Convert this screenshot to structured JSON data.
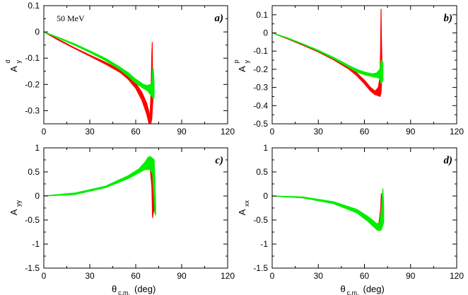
{
  "chart_data": [
    {
      "id": "a",
      "type": "line",
      "panel_label": "a)",
      "annotation": "50 MeV",
      "ylabel_main": "A",
      "ylabel_sub": "y",
      "ylabel_sup": "d",
      "xlabel_main": "",
      "xlabel_sub": "",
      "xlabel_rest": "",
      "xlim": [
        0,
        120
      ],
      "ylim": [
        -0.35,
        0.1
      ],
      "xticks": [
        0,
        30,
        60,
        90,
        120
      ],
      "yticks": [
        -0.3,
        -0.2,
        -0.1,
        0,
        0.1
      ],
      "ytick_labels": [
        "-0.3",
        "-0.2",
        "-0.1",
        "0",
        "0.1"
      ],
      "series": [
        {
          "name": "red band",
          "color": "#ff0000",
          "upper": [
            [
              0,
              0
            ],
            [
              10,
              -0.03
            ],
            [
              20,
              -0.06
            ],
            [
              30,
              -0.088
            ],
            [
              40,
              -0.115
            ],
            [
              50,
              -0.145
            ],
            [
              55,
              -0.165
            ],
            [
              60,
              -0.195
            ],
            [
              64,
              -0.23
            ],
            [
              67,
              -0.27
            ],
            [
              68.5,
              -0.3
            ],
            [
              69,
              -0.33
            ],
            [
              69.5,
              -0.3
            ],
            [
              70,
              -0.22
            ],
            [
              70.5,
              -0.08
            ],
            [
              70.8,
              -0.04
            ],
            [
              71,
              -0.2
            ],
            [
              71.5,
              -0.22
            ]
          ],
          "lower": [
            [
              71.5,
              -0.24
            ],
            [
              71,
              -0.28
            ],
            [
              70.8,
              -0.3
            ],
            [
              70.5,
              -0.33
            ],
            [
              70,
              -0.345
            ],
            [
              69.5,
              -0.35
            ],
            [
              69,
              -0.36
            ],
            [
              68.5,
              -0.345
            ],
            [
              67,
              -0.31
            ],
            [
              64,
              -0.26
            ],
            [
              60,
              -0.215
            ],
            [
              55,
              -0.18
            ],
            [
              50,
              -0.155
            ],
            [
              40,
              -0.122
            ],
            [
              30,
              -0.092
            ],
            [
              20,
              -0.063
            ],
            [
              10,
              -0.033
            ],
            [
              0,
              0
            ]
          ]
        },
        {
          "name": "green band",
          "color": "#00ee00",
          "upper": [
            [
              0,
              0
            ],
            [
              10,
              -0.022
            ],
            [
              20,
              -0.045
            ],
            [
              30,
              -0.072
            ],
            [
              40,
              -0.1
            ],
            [
              50,
              -0.135
            ],
            [
              55,
              -0.155
            ],
            [
              60,
              -0.18
            ],
            [
              65,
              -0.2
            ],
            [
              68,
              -0.205
            ],
            [
              69,
              -0.2
            ],
            [
              70,
              -0.2
            ],
            [
              70.5,
              -0.19
            ],
            [
              71,
              -0.14
            ],
            [
              71.5,
              -0.14
            ],
            [
              72,
              -0.2
            ]
          ],
          "lower": [
            [
              72,
              -0.25
            ],
            [
              71.5,
              -0.255
            ],
            [
              71,
              -0.25
            ],
            [
              70.5,
              -0.245
            ],
            [
              70,
              -0.24
            ],
            [
              69,
              -0.235
            ],
            [
              68,
              -0.225
            ],
            [
              65,
              -0.215
            ],
            [
              60,
              -0.195
            ],
            [
              55,
              -0.168
            ],
            [
              50,
              -0.145
            ],
            [
              40,
              -0.108
            ],
            [
              30,
              -0.078
            ],
            [
              20,
              -0.05
            ],
            [
              10,
              -0.025
            ],
            [
              0,
              0
            ]
          ]
        }
      ]
    },
    {
      "id": "b",
      "type": "line",
      "panel_label": "b)",
      "annotation": "",
      "ylabel_main": "A",
      "ylabel_sub": "y",
      "ylabel_sup": "p",
      "xlabel_main": "",
      "xlabel_sub": "",
      "xlabel_rest": "",
      "xlim": [
        0,
        120
      ],
      "ylim": [
        -0.5,
        0.15
      ],
      "xticks": [
        0,
        30,
        60,
        90,
        120
      ],
      "yticks": [
        -0.5,
        -0.4,
        -0.3,
        -0.2,
        -0.1,
        0,
        0.1
      ],
      "ytick_labels": [
        "-0.5",
        "-0.4",
        "-0.3",
        "-0.2",
        "-0.1",
        "0",
        "0.1"
      ],
      "series": [
        {
          "name": "red band",
          "color": "#ff0000",
          "upper": [
            [
              0,
              0
            ],
            [
              10,
              -0.03
            ],
            [
              20,
              -0.065
            ],
            [
              30,
              -0.1
            ],
            [
              40,
              -0.14
            ],
            [
              50,
              -0.19
            ],
            [
              55,
              -0.22
            ],
            [
              60,
              -0.26
            ],
            [
              64,
              -0.3
            ],
            [
              67,
              -0.32
            ],
            [
              69,
              -0.3
            ],
            [
              70,
              -0.25
            ],
            [
              70.5,
              -0.1
            ],
            [
              70.8,
              0.13
            ],
            [
              71,
              0.0
            ],
            [
              71.5,
              -0.2
            ]
          ],
          "lower": [
            [
              71.5,
              -0.25
            ],
            [
              71,
              -0.3
            ],
            [
              70.8,
              -0.33
            ],
            [
              70.5,
              -0.34
            ],
            [
              70,
              -0.35
            ],
            [
              69,
              -0.345
            ],
            [
              67,
              -0.34
            ],
            [
              64,
              -0.32
            ],
            [
              60,
              -0.28
            ],
            [
              55,
              -0.235
            ],
            [
              50,
              -0.2
            ],
            [
              40,
              -0.148
            ],
            [
              30,
              -0.105
            ],
            [
              20,
              -0.068
            ],
            [
              10,
              -0.033
            ],
            [
              0,
              0
            ]
          ]
        },
        {
          "name": "green band",
          "color": "#00ee00",
          "upper": [
            [
              0,
              0
            ],
            [
              10,
              -0.027
            ],
            [
              20,
              -0.06
            ],
            [
              30,
              -0.095
            ],
            [
              40,
              -0.135
            ],
            [
              50,
              -0.18
            ],
            [
              55,
              -0.2
            ],
            [
              60,
              -0.215
            ],
            [
              65,
              -0.225
            ],
            [
              68,
              -0.22
            ],
            [
              70,
              -0.2
            ],
            [
              71,
              -0.15
            ],
            [
              72,
              -0.16
            ]
          ],
          "lower": [
            [
              72,
              -0.26
            ],
            [
              71,
              -0.28
            ],
            [
              70,
              -0.25
            ],
            [
              68,
              -0.245
            ],
            [
              65,
              -0.24
            ],
            [
              60,
              -0.23
            ],
            [
              55,
              -0.215
            ],
            [
              50,
              -0.19
            ],
            [
              40,
              -0.142
            ],
            [
              30,
              -0.1
            ],
            [
              20,
              -0.063
            ],
            [
              10,
              -0.03
            ],
            [
              0,
              0
            ]
          ]
        }
      ]
    },
    {
      "id": "c",
      "type": "line",
      "panel_label": "c)",
      "annotation": "",
      "ylabel_main": "A",
      "ylabel_sub": "yy",
      "ylabel_sup": "",
      "xlabel_main": "θ",
      "xlabel_sub": "c.m.",
      "xlabel_rest": " (deg)",
      "xlim": [
        0,
        120
      ],
      "ylim": [
        -1.5,
        1
      ],
      "xticks": [
        0,
        30,
        60,
        90,
        120
      ],
      "yticks": [
        -1.5,
        -1,
        -0.5,
        0,
        0.5,
        1
      ],
      "ytick_labels": [
        "-1.5",
        "-1",
        "-0.5",
        "0",
        "0.5",
        "1"
      ],
      "series": [
        {
          "name": "red band",
          "color": "#ff0000",
          "upper": [
            [
              0,
              0
            ],
            [
              20,
              0.05
            ],
            [
              40,
              0.2
            ],
            [
              55,
              0.4
            ],
            [
              62,
              0.55
            ],
            [
              66,
              0.68
            ],
            [
              68,
              0.75
            ],
            [
              69.5,
              0.77
            ],
            [
              70.5,
              0.6
            ],
            [
              71,
              0.2
            ],
            [
              71.5,
              0.0
            ],
            [
              72,
              -0.2
            ]
          ],
          "lower": [
            [
              72,
              -0.3
            ],
            [
              71.5,
              -0.35
            ],
            [
              71,
              -0.45
            ],
            [
              70.5,
              0.2
            ],
            [
              69.5,
              0.55
            ],
            [
              68,
              0.6
            ],
            [
              66,
              0.58
            ],
            [
              62,
              0.5
            ],
            [
              55,
              0.37
            ],
            [
              40,
              0.18
            ],
            [
              20,
              0.04
            ],
            [
              0,
              0
            ]
          ]
        },
        {
          "name": "green band",
          "color": "#00ee00",
          "upper": [
            [
              0,
              0
            ],
            [
              20,
              0.06
            ],
            [
              40,
              0.2
            ],
            [
              55,
              0.42
            ],
            [
              62,
              0.56
            ],
            [
              66,
              0.7
            ],
            [
              68,
              0.8
            ],
            [
              69.5,
              0.82
            ],
            [
              71,
              0.78
            ],
            [
              72,
              0.75
            ],
            [
              72.5,
              0.3
            ],
            [
              73,
              -0.2
            ]
          ],
          "lower": [
            [
              73,
              -0.4
            ],
            [
              72.5,
              -0.35
            ],
            [
              72,
              0.0
            ],
            [
              71,
              0.45
            ],
            [
              69.5,
              0.55
            ],
            [
              68,
              0.55
            ],
            [
              66,
              0.55
            ],
            [
              62,
              0.48
            ],
            [
              55,
              0.36
            ],
            [
              40,
              0.17
            ],
            [
              20,
              0.03
            ],
            [
              0,
              0
            ]
          ]
        }
      ]
    },
    {
      "id": "d",
      "type": "line",
      "panel_label": "d)",
      "annotation": "",
      "ylabel_main": "A",
      "ylabel_sub": "xx",
      "ylabel_sup": "",
      "xlabel_main": "θ",
      "xlabel_sub": "c.m.",
      "xlabel_rest": " (deg)",
      "xlim": [
        0,
        120
      ],
      "ylim": [
        -1.5,
        1
      ],
      "xticks": [
        0,
        30,
        60,
        90,
        120
      ],
      "yticks": [
        -1.5,
        -1,
        -0.5,
        0,
        0.5,
        1
      ],
      "ytick_labels": [
        "-1.5",
        "-1",
        "-0.5",
        "0",
        "0.5",
        "1"
      ],
      "series": [
        {
          "name": "red band",
          "color": "#ff0000",
          "upper": [
            [
              0,
              0
            ],
            [
              20,
              -0.03
            ],
            [
              40,
              -0.13
            ],
            [
              55,
              -0.3
            ],
            [
              62,
              -0.45
            ],
            [
              66,
              -0.55
            ],
            [
              68,
              -0.6
            ],
            [
              69.5,
              -0.55
            ],
            [
              70.5,
              -0.3
            ],
            [
              71,
              0.05
            ],
            [
              71.5,
              -0.2
            ]
          ],
          "lower": [
            [
              71.5,
              -0.45
            ],
            [
              71,
              -0.6
            ],
            [
              70.5,
              -0.68
            ],
            [
              69.5,
              -0.72
            ],
            [
              68,
              -0.7
            ],
            [
              66,
              -0.63
            ],
            [
              62,
              -0.5
            ],
            [
              55,
              -0.34
            ],
            [
              40,
              -0.15
            ],
            [
              20,
              -0.04
            ],
            [
              0,
              0
            ]
          ]
        },
        {
          "name": "green band",
          "color": "#00ee00",
          "upper": [
            [
              0,
              0
            ],
            [
              20,
              -0.02
            ],
            [
              40,
              -0.12
            ],
            [
              55,
              -0.28
            ],
            [
              62,
              -0.42
            ],
            [
              66,
              -0.52
            ],
            [
              68,
              -0.58
            ],
            [
              70,
              -0.55
            ],
            [
              71,
              -0.3
            ],
            [
              72,
              0.15
            ],
            [
              72.5,
              -0.2
            ]
          ],
          "lower": [
            [
              72.5,
              -0.55
            ],
            [
              72,
              -0.6
            ],
            [
              71,
              -0.7
            ],
            [
              70,
              -0.72
            ],
            [
              68,
              -0.7
            ],
            [
              66,
              -0.64
            ],
            [
              62,
              -0.52
            ],
            [
              55,
              -0.35
            ],
            [
              40,
              -0.16
            ],
            [
              20,
              -0.04
            ],
            [
              0,
              0
            ]
          ]
        }
      ]
    }
  ]
}
